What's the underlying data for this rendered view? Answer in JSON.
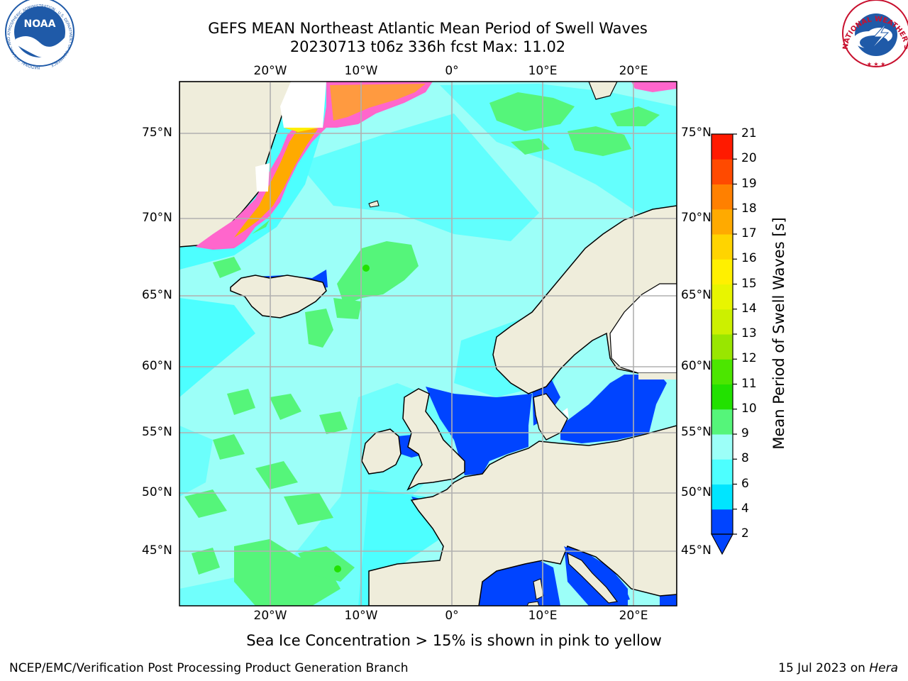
{
  "header": {
    "title": "GEFS MEAN Northeast Atlantic Mean Period of Swell Waves",
    "subtitle": "20230713 t06z 336h fcst   Max: 11.02"
  },
  "map": {
    "lon_labels": [
      "20°W",
      "10°W",
      "0°",
      "10°E",
      "20°E"
    ],
    "lat_labels": [
      "75°N",
      "70°N",
      "65°N",
      "60°N",
      "55°N",
      "50°N",
      "45°N"
    ],
    "land_color": "#efeddb",
    "ocean_base_color": "#9cfff8",
    "grid_color": "#b0b0b0"
  },
  "colorbar": {
    "title": "Mean Period of Swell Waves [s]",
    "levels": [
      "2",
      "4",
      "6",
      "8",
      "9",
      "10",
      "11",
      "12",
      "13",
      "14",
      "15",
      "16",
      "17",
      "18",
      "19",
      "20",
      "21"
    ],
    "colors": [
      "#0044ff",
      "#00e5ff",
      "#4dffff",
      "#9cfff8",
      "#55f57a",
      "#22e100",
      "#4ce600",
      "#99e600",
      "#ccf000",
      "#e8f500",
      "#fff000",
      "#ffd400",
      "#ffaa00",
      "#ff8000",
      "#ff4a00",
      "#ff1a00"
    ],
    "extend_color": "#0044ff"
  },
  "caption": "Sea Ice Concentration > 15% is shown in pink to yellow",
  "footer": {
    "left": "NCEP/EMC/Verification Post Processing Product Generation Branch",
    "date": "15 Jul 2023 on ",
    "host": "Hera"
  },
  "logos": {
    "noaa_text": "NOAA",
    "noaa_ring_text": "NATIONAL OCEANIC AND ATMOSPHERIC ADMINISTRATION · U.S. DEPARTMENT OF COMMERCE",
    "nws_ring_text": "NATIONAL WEATHER SERVICE"
  }
}
